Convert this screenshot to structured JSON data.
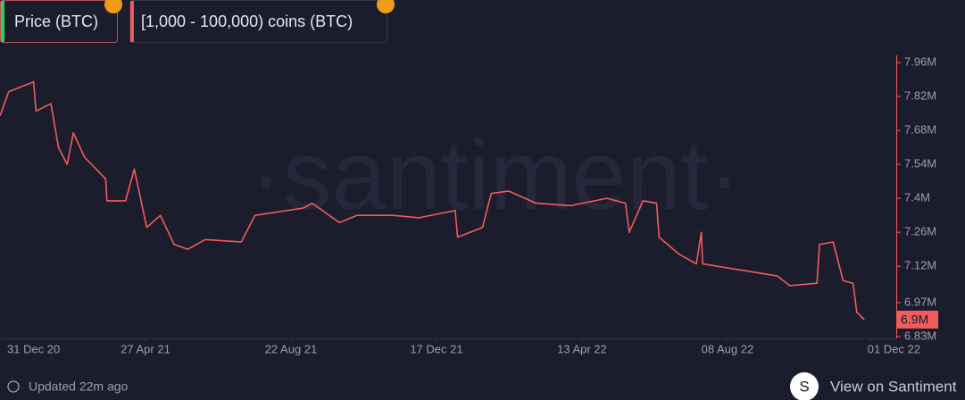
{
  "chart_data": {
    "type": "line",
    "extra_metric": {
      "name": "Price (BTC)",
      "color": "#2fd05d"
    },
    "watermark": "·santiment·",
    "x": [
      "2020-12-31",
      "2021-01-07",
      "2021-01-27",
      "2021-01-29",
      "2021-02-10",
      "2021-02-16",
      "2021-02-23",
      "2021-02-28",
      "2021-03-09",
      "2021-03-26",
      "2021-03-27",
      "2021-04-11",
      "2021-04-18",
      "2021-04-28",
      "2021-05-09",
      "2021-05-20",
      "2021-05-31",
      "2021-06-14",
      "2021-07-13",
      "2021-07-24",
      "2021-09-01",
      "2021-09-08",
      "2021-09-30",
      "2021-10-14",
      "2021-11-12",
      "2021-12-03",
      "2022-01-01",
      "2022-01-03",
      "2022-01-23",
      "2022-01-30",
      "2022-02-13",
      "2022-03-07",
      "2022-04-04",
      "2022-05-03",
      "2022-05-18",
      "2022-05-21",
      "2022-06-01",
      "2022-06-12",
      "2022-06-14",
      "2022-06-30",
      "2022-07-14",
      "2022-07-18",
      "2022-07-19",
      "2022-08-12",
      "2022-09-17",
      "2022-09-27",
      "2022-10-19",
      "2022-10-21",
      "2022-11-01",
      "2022-11-09",
      "2022-11-17",
      "2022-11-20",
      "2022-11-26"
    ],
    "series": [
      {
        "name": "[1,000 - 100,000) coins (BTC)",
        "color": "#f05c5c",
        "values": [
          7740000,
          7840000,
          7880000,
          7760000,
          7790000,
          7610000,
          7540000,
          7670000,
          7570000,
          7480000,
          7390000,
          7390000,
          7520000,
          7280000,
          7330000,
          7210000,
          7190000,
          7230000,
          7220000,
          7330000,
          7360000,
          7380000,
          7300000,
          7330000,
          7330000,
          7320000,
          7350000,
          7240000,
          7280000,
          7420000,
          7430000,
          7380000,
          7370000,
          7400000,
          7380000,
          7260000,
          7390000,
          7380000,
          7240000,
          7170000,
          7130000,
          7260000,
          7130000,
          7110000,
          7080000,
          7040000,
          7050000,
          7210000,
          7220000,
          7060000,
          7050000,
          6930000,
          6900000
        ],
        "value_labels": [
          null,
          null,
          null,
          null,
          null,
          null,
          null,
          null,
          null,
          null,
          null,
          null,
          null,
          null,
          null,
          null,
          null,
          null,
          null,
          null,
          null,
          null,
          null,
          null,
          null,
          null,
          null,
          null,
          null,
          null,
          null,
          null,
          null,
          null,
          null,
          null,
          null,
          null,
          null,
          null,
          null,
          null,
          null,
          null,
          null,
          null,
          null,
          null,
          null,
          null,
          null,
          null,
          "6.9M"
        ]
      }
    ],
    "xlim": [
      "2020-12-31",
      "2022-12-21"
    ],
    "xticks": [
      {
        "value": "2020-12-31",
        "label": "31 Dec 20"
      },
      {
        "value": "2021-04-27",
        "label": "27 Apr 21"
      },
      {
        "value": "2021-08-22",
        "label": "22 Aug 21"
      },
      {
        "value": "2021-12-17",
        "label": "17 Dec 21"
      },
      {
        "value": "2022-04-13",
        "label": "13 Apr 22"
      },
      {
        "value": "2022-08-08",
        "label": "08 Aug 22"
      },
      {
        "value": "2022-12-01",
        "label": "01 Dec 22"
      }
    ],
    "ylim": [
      6830000,
      7960000
    ],
    "yticks": [
      {
        "value": 7960000,
        "label": "7.96M"
      },
      {
        "value": 7820000,
        "label": "7.82M"
      },
      {
        "value": 7680000,
        "label": "7.68M"
      },
      {
        "value": 7540000,
        "label": "7.54M"
      },
      {
        "value": 7400000,
        "label": "7.4M"
      },
      {
        "value": 7260000,
        "label": "7.26M"
      },
      {
        "value": 7120000,
        "label": "7.12M"
      },
      {
        "value": 6970000,
        "label": "6.97M"
      },
      {
        "value": 6830000,
        "label": "6.83M"
      }
    ]
  },
  "footer": {
    "updated": "Updated 22m ago",
    "logo": "S",
    "link": "View on Santiment"
  }
}
